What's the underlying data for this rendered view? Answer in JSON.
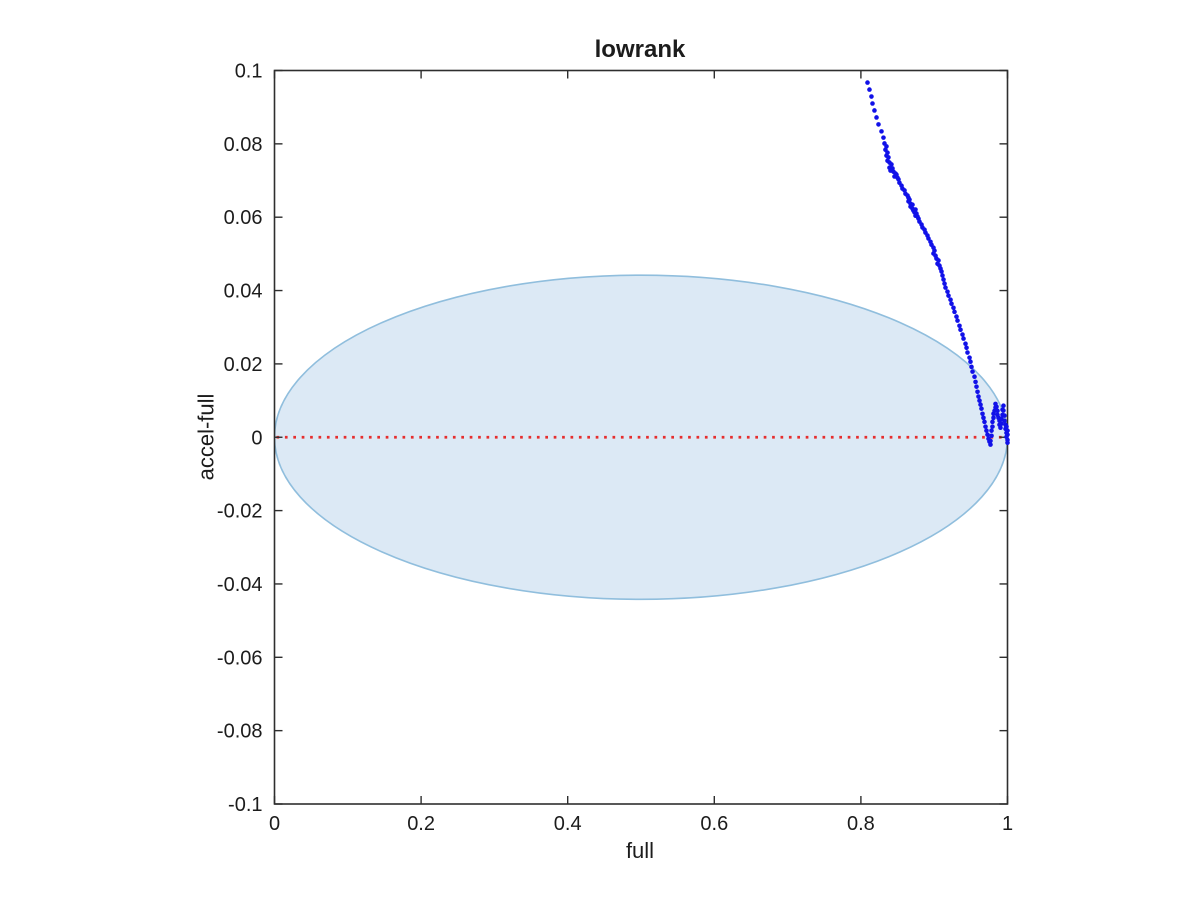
{
  "window": {
    "background": "#ffffff"
  },
  "chart_data": {
    "type": "scatter",
    "title": "lowrank",
    "xlabel": "full",
    "ylabel": "accel-full",
    "xlim": [
      0,
      1
    ],
    "ylim": [
      -0.1,
      0.1
    ],
    "grid": false,
    "box": true,
    "legend": null,
    "xticks": {
      "values": [
        0,
        0.2,
        0.4,
        0.6,
        0.8,
        1
      ],
      "labels": [
        "0",
        "0.2",
        "0.4",
        "0.6",
        "0.8",
        "1"
      ]
    },
    "yticks": {
      "values": [
        -0.1,
        -0.08,
        -0.06,
        -0.04,
        -0.02,
        0,
        0.02,
        0.04,
        0.06,
        0.08,
        0.1
      ],
      "labels": [
        "-0.1",
        "-0.08",
        "-0.06",
        "-0.04",
        "-0.02",
        "0",
        "0.02",
        "0.04",
        "0.06",
        "0.08",
        "0.1"
      ]
    },
    "colors": {
      "axis": "#2e2e2e",
      "text": "#1c1c1c",
      "scatter": "#1111e8",
      "zero_line": "#e62e2e",
      "ellipse_fill": "#dce9f5",
      "ellipse_stroke": "#90bedd"
    },
    "ellipse": {
      "cx": 0.5,
      "cy": 0,
      "rx": 0.5,
      "ry": 0.0442
    },
    "zero_line": {
      "y": 0,
      "style": "dotted"
    },
    "series": [
      {
        "name": "accel-full deviation",
        "marker": "dot",
        "color": "#1111e8",
        "points": [
          [
            0.809,
            0.0967
          ],
          [
            0.8117,
            0.0948
          ],
          [
            0.8144,
            0.0929
          ],
          [
            0.8158,
            0.091
          ],
          [
            0.8185,
            0.0891
          ],
          [
            0.8213,
            0.0872
          ],
          [
            0.824,
            0.0853
          ],
          [
            0.8281,
            0.0834
          ],
          [
            0.8308,
            0.0817
          ],
          [
            0.8322,
            0.0801
          ],
          [
            0.8349,
            0.0793
          ],
          [
            0.8335,
            0.0784
          ],
          [
            0.8363,
            0.0776
          ],
          [
            0.8349,
            0.0768
          ],
          [
            0.8376,
            0.0763
          ],
          [
            0.8363,
            0.0754
          ],
          [
            0.839,
            0.0749
          ],
          [
            0.8417,
            0.0744
          ],
          [
            0.839,
            0.0735
          ],
          [
            0.8431,
            0.0733
          ],
          [
            0.8404,
            0.0727
          ],
          [
            0.8445,
            0.0724
          ],
          [
            0.8472,
            0.0719
          ],
          [
            0.8458,
            0.0711
          ],
          [
            0.8485,
            0.0716
          ],
          [
            0.8499,
            0.0708
          ],
          [
            0.8513,
            0.0703
          ],
          [
            0.8526,
            0.0694
          ],
          [
            0.8554,
            0.0686
          ],
          [
            0.8567,
            0.0678
          ],
          [
            0.8595,
            0.0673
          ],
          [
            0.8608,
            0.0664
          ],
          [
            0.8636,
            0.0659
          ],
          [
            0.8649,
            0.0653
          ],
          [
            0.8663,
            0.0648
          ],
          [
            0.8649,
            0.0643
          ],
          [
            0.8677,
            0.0637
          ],
          [
            0.8704,
            0.0634
          ],
          [
            0.8677,
            0.0629
          ],
          [
            0.8704,
            0.0623
          ],
          [
            0.8717,
            0.0618
          ],
          [
            0.8745,
            0.0621
          ],
          [
            0.8731,
            0.0613
          ],
          [
            0.8758,
            0.061
          ],
          [
            0.8745,
            0.0604
          ],
          [
            0.8772,
            0.0602
          ],
          [
            0.8786,
            0.0596
          ],
          [
            0.8799,
            0.0588
          ],
          [
            0.8827,
            0.058
          ],
          [
            0.884,
            0.0572
          ],
          [
            0.8868,
            0.0566
          ],
          [
            0.8881,
            0.0558
          ],
          [
            0.8908,
            0.055
          ],
          [
            0.8922,
            0.0542
          ],
          [
            0.8949,
            0.0533
          ],
          [
            0.8963,
            0.0525
          ],
          [
            0.899,
            0.0517
          ],
          [
            0.9004,
            0.0509
          ],
          [
            0.899,
            0.0501
          ],
          [
            0.9018,
            0.0495
          ],
          [
            0.9031,
            0.0487
          ],
          [
            0.9059,
            0.0482
          ],
          [
            0.9045,
            0.0473
          ],
          [
            0.9072,
            0.0468
          ],
          [
            0.9086,
            0.046
          ],
          [
            0.91,
            0.0452
          ],
          [
            0.9113,
            0.0441
          ],
          [
            0.9127,
            0.043
          ],
          [
            0.9141,
            0.0419
          ],
          [
            0.9154,
            0.0408
          ],
          [
            0.9181,
            0.0397
          ],
          [
            0.9195,
            0.0386
          ],
          [
            0.9223,
            0.0375
          ],
          [
            0.9236,
            0.0364
          ],
          [
            0.9263,
            0.0353
          ],
          [
            0.9277,
            0.0342
          ],
          [
            0.9304,
            0.0329
          ],
          [
            0.9318,
            0.0318
          ],
          [
            0.9345,
            0.0304
          ],
          [
            0.9359,
            0.0293
          ],
          [
            0.9386,
            0.028
          ],
          [
            0.94,
            0.0269
          ],
          [
            0.9427,
            0.0255
          ],
          [
            0.9441,
            0.0244
          ],
          [
            0.9454,
            0.0231
          ],
          [
            0.9482,
            0.0217
          ],
          [
            0.9495,
            0.0206
          ],
          [
            0.9509,
            0.0192
          ],
          [
            0.9523,
            0.0179
          ],
          [
            0.955,
            0.0165
          ],
          [
            0.9564,
            0.0151
          ],
          [
            0.9577,
            0.0138
          ],
          [
            0.9591,
            0.0124
          ],
          [
            0.9604,
            0.0111
          ],
          [
            0.9618,
            0.01
          ],
          [
            0.9632,
            0.0089
          ],
          [
            0.9645,
            0.0078
          ],
          [
            0.9659,
            0.0064
          ],
          [
            0.9672,
            0.0053
          ],
          [
            0.9686,
            0.0042
          ],
          [
            0.97,
            0.0029
          ],
          [
            0.9713,
            0.0018
          ],
          [
            0.9727,
            0.0007
          ],
          [
            0.9741,
            -0.0004
          ],
          [
            0.9754,
            -0.0012
          ],
          [
            0.9768,
            -0.002
          ],
          [
            0.9768,
            -0.001
          ],
          [
            0.9782,
            0.0004
          ],
          [
            0.9782,
            0.0018
          ],
          [
            0.9795,
            0.0029
          ],
          [
            0.9795,
            0.0042
          ],
          [
            0.9809,
            0.0053
          ],
          [
            0.9809,
            0.0064
          ],
          [
            0.9823,
            0.0072
          ],
          [
            0.9836,
            0.0081
          ],
          [
            0.9836,
            0.0091
          ],
          [
            0.985,
            0.0083
          ],
          [
            0.9863,
            0.0072
          ],
          [
            0.9863,
            0.0061
          ],
          [
            0.9877,
            0.0053
          ],
          [
            0.9891,
            0.0045
          ],
          [
            0.9891,
            0.0034
          ],
          [
            0.9904,
            0.0026
          ],
          [
            0.9918,
            0.0037
          ],
          [
            0.9918,
            0.005
          ],
          [
            0.9932,
            0.0061
          ],
          [
            0.9932,
            0.0075
          ],
          [
            0.9945,
            0.0086
          ],
          [
            0.9945,
            0.0073
          ],
          [
            0.9959,
            0.0059
          ],
          [
            0.9959,
            0.0045
          ],
          [
            0.9973,
            0.0034
          ],
          [
            0.9973,
            0.0023
          ],
          [
            0.9986,
            0.0012
          ],
          [
            0.9986,
            0.0001
          ],
          [
            1.0,
            -0.0007
          ],
          [
            1.0,
            -0.0015
          ],
          [
            0.9986,
            0.0029
          ],
          [
            1.0,
            0.0018
          ],
          [
            1.0,
            0.0007
          ]
        ]
      }
    ]
  }
}
